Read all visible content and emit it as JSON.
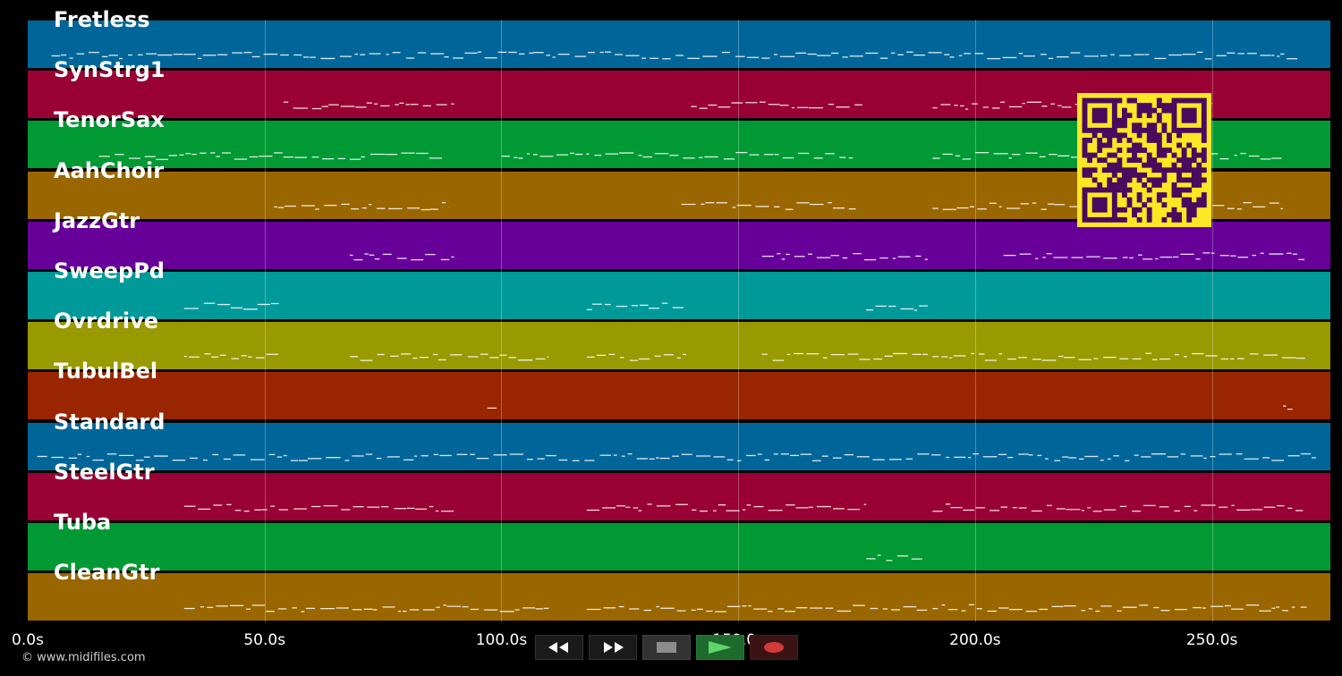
{
  "tracks": [
    {
      "name": "Fretless",
      "color": "#006699"
    },
    {
      "name": "SynStrg1",
      "color": "#990033"
    },
    {
      "name": "TenorSax",
      "color": "#009933"
    },
    {
      "name": "AahChoir",
      "color": "#996600"
    },
    {
      "name": "JazzGtr",
      "color": "#660099"
    },
    {
      "name": "SweepPd",
      "color": "#009999"
    },
    {
      "name": "Ovrdrive",
      "color": "#999900"
    },
    {
      "name": "TubulBel",
      "color": "#992600"
    },
    {
      "name": "Standard",
      "color": "#006699"
    },
    {
      "name": "SteelGtr",
      "color": "#990033"
    },
    {
      "name": "Tuba",
      "color": "#009933"
    },
    {
      "name": "CleanGtr",
      "color": "#996600"
    }
  ],
  "timeline": {
    "ticks": [
      "0.0s",
      "50.0s",
      "100.0s",
      "150.0s",
      "200.0s",
      "250.0s"
    ],
    "tick_values": [
      0,
      50,
      100,
      150,
      200,
      250
    ],
    "max_seconds": 275
  },
  "copyright": "© www.midifiles.com",
  "transport": {
    "rewind_icon": "rewind-icon",
    "forward_icon": "fast-forward-icon",
    "stop_icon": "stop-icon",
    "play_icon": "play-icon",
    "record_icon": "record-icon"
  },
  "qr_code": {
    "icon": "qr-code-icon",
    "color": "#fde725",
    "module_color": "#4a0a5e"
  }
}
